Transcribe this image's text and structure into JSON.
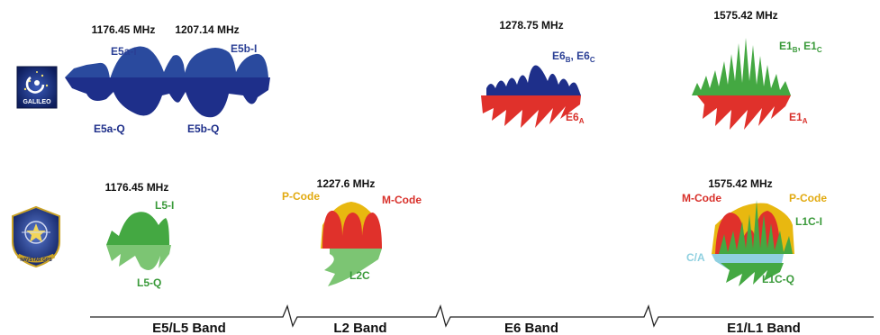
{
  "systems": [
    {
      "name": "GALILEO",
      "icon": "galileo-logo"
    },
    {
      "name": "NAVSTAR GPS",
      "icon": "gps-logo"
    }
  ],
  "galileo": {
    "freq_e5a": "1176.45 MHz",
    "freq_e5b": "1207.14 MHz",
    "freq_e6": "1278.75 MHz",
    "freq_e1": "1575.42 MHz",
    "e5a_i": "E5a-I",
    "e5b_i": "E5b-I",
    "e5a_q": "E5a-Q",
    "e5b_q": "E5b-Q",
    "e6_main": "E6",
    "e6_sub_b": "B",
    "e6_sep": ", E6",
    "e6_sub_c": "C",
    "e6a_main": "E6",
    "e6a_sub": "A",
    "e1_main": "E1",
    "e1_sub_b": "B",
    "e1_sep": ", E1",
    "e1_sub_c": "C",
    "e1a_main": "E1",
    "e1a_sub": "A"
  },
  "gps": {
    "freq_l5": "1176.45 MHz",
    "freq_l2": "1227.6 MHz",
    "freq_l1": "1575.42 MHz",
    "l5_i": "L5-I",
    "l5_q": "L5-Q",
    "l2_pcode": "P-Code",
    "l2_mcode": "M-Code",
    "l2c": "L2C",
    "l1_mcode": "M-Code",
    "l1_pcode": "P-Code",
    "l1c_i": "L1C-I",
    "ca": "C/A",
    "l1c_q": "L1C-Q"
  },
  "bands": [
    "E5/L5 Band",
    "L2 Band",
    "E6 Band",
    "E1/L1 Band"
  ],
  "colors": {
    "navy": "#1e2f8a",
    "galileo_blue": "#2a4a9e",
    "red": "#e0312b",
    "green": "#44a842",
    "light_green": "#7cc573",
    "gold": "#e8b810",
    "cyan": "#8fd0e0",
    "text_blue": "#2a3f95",
    "text_green": "#3a9a3a",
    "text_red": "#d8302a",
    "text_gold": "#e2aa10"
  }
}
